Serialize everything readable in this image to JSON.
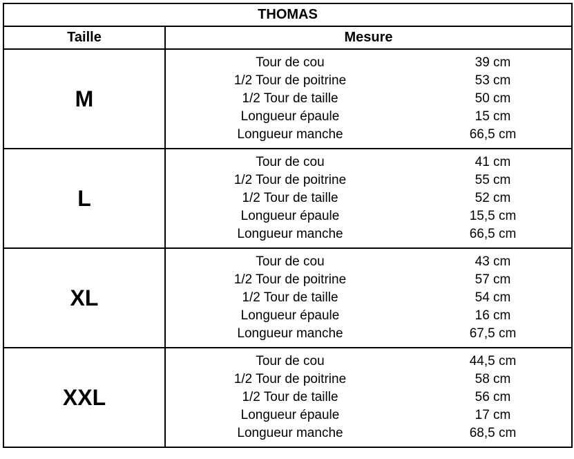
{
  "title": "THOMAS",
  "headers": {
    "size": "Taille",
    "measure": "Mesure"
  },
  "measure_labels": [
    "Tour de cou",
    "1/2 Tour de poitrine",
    "1/2 Tour de taille",
    "Longueur épaule",
    "Longueur manche"
  ],
  "sizes": [
    {
      "size": "M",
      "values": [
        "39 cm",
        "53 cm",
        "50 cm",
        "15 cm",
        "66,5 cm"
      ]
    },
    {
      "size": "L",
      "values": [
        "41 cm",
        "55 cm",
        "52 cm",
        "15,5 cm",
        "66,5 cm"
      ]
    },
    {
      "size": "XL",
      "values": [
        "43 cm",
        "57 cm",
        "54 cm",
        "16 cm",
        "67,5 cm"
      ]
    },
    {
      "size": "XXL",
      "values": [
        "44,5 cm",
        "58 cm",
        "56 cm",
        "17 cm",
        "68,5 cm"
      ]
    }
  ],
  "style": {
    "border_color": "#000000",
    "background": "#ffffff",
    "title_fontsize": 20,
    "header_fontsize": 20,
    "size_fontsize": 32,
    "body_fontsize": 19,
    "col_size_width": 234,
    "col_measure_width": 589,
    "name_col_width": 360
  }
}
